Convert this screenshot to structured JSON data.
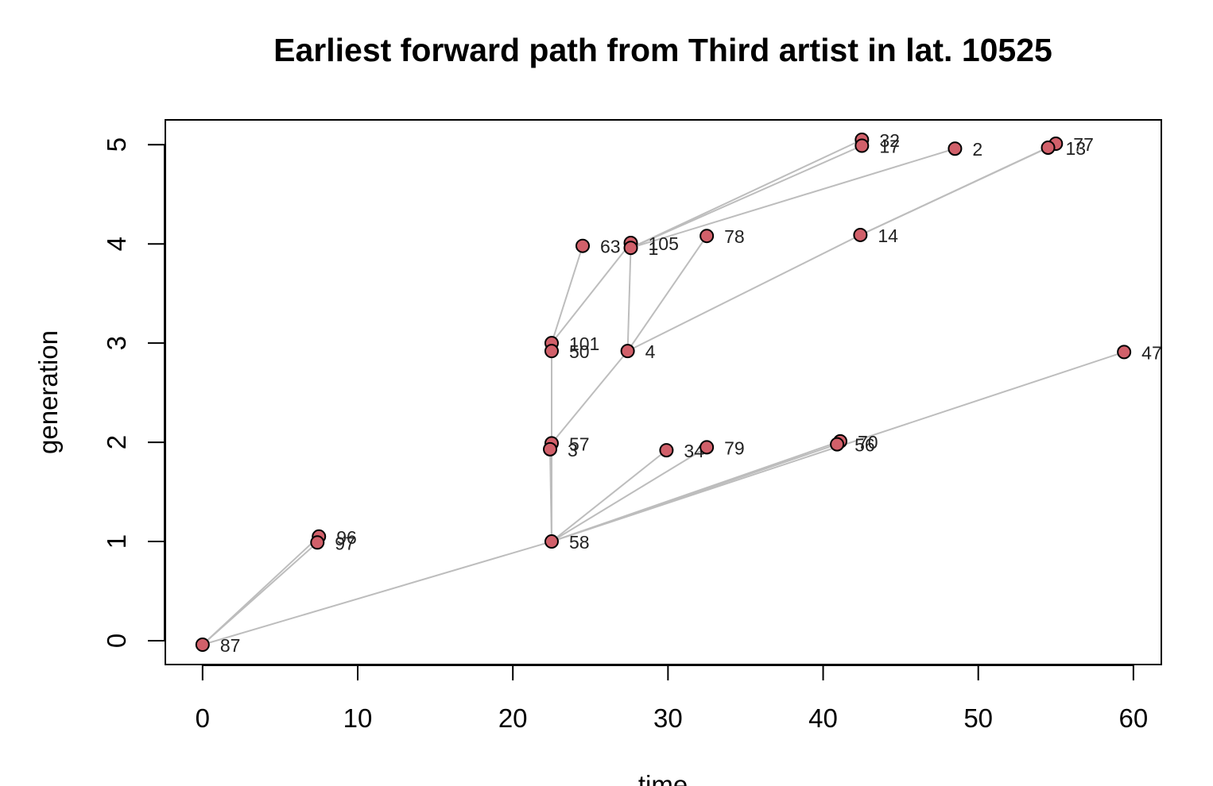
{
  "chart_data": {
    "type": "scatter",
    "title": "Earliest forward path from Third artist in lat. 10525",
    "xlabel": "time",
    "ylabel": "generation",
    "xlim": [
      -2.4,
      61.8
    ],
    "ylim": [
      -0.24,
      5.25
    ],
    "xticks": [
      0,
      10,
      20,
      30,
      40,
      50,
      60
    ],
    "yticks": [
      0,
      1,
      2,
      3,
      4,
      5
    ],
    "grid": false,
    "point_color": "#d1606a",
    "edge_color": "#bdbdbd",
    "nodes": [
      {
        "id": "87",
        "x": 0.0,
        "y": -0.04
      },
      {
        "id": "96",
        "x": 7.5,
        "y": 1.05
      },
      {
        "id": "97",
        "x": 7.4,
        "y": 0.99
      },
      {
        "id": "58",
        "x": 22.5,
        "y": 1.0
      },
      {
        "id": "57",
        "x": 22.5,
        "y": 1.99
      },
      {
        "id": "3",
        "x": 22.4,
        "y": 1.93
      },
      {
        "id": "34",
        "x": 29.9,
        "y": 1.92
      },
      {
        "id": "79",
        "x": 32.5,
        "y": 1.95
      },
      {
        "id": "70",
        "x": 41.1,
        "y": 2.01
      },
      {
        "id": "56",
        "x": 40.9,
        "y": 1.98
      },
      {
        "id": "101",
        "x": 22.5,
        "y": 3.0
      },
      {
        "id": "50",
        "x": 22.5,
        "y": 2.92
      },
      {
        "id": "4",
        "x": 27.4,
        "y": 2.92
      },
      {
        "id": "47",
        "x": 59.4,
        "y": 2.91
      },
      {
        "id": "63",
        "x": 24.5,
        "y": 3.98
      },
      {
        "id": "105",
        "x": 27.6,
        "y": 4.01
      },
      {
        "id": "1",
        "x": 27.6,
        "y": 3.96
      },
      {
        "id": "78",
        "x": 32.5,
        "y": 4.08
      },
      {
        "id": "14",
        "x": 42.4,
        "y": 4.09
      },
      {
        "id": "32",
        "x": 42.5,
        "y": 5.05
      },
      {
        "id": "17",
        "x": 42.5,
        "y": 4.99
      },
      {
        "id": "2",
        "x": 48.5,
        "y": 4.96
      },
      {
        "id": "77",
        "x": 55.0,
        "y": 5.01
      },
      {
        "id": "13",
        "x": 54.5,
        "y": 4.97
      }
    ],
    "edges": [
      [
        "87",
        "96"
      ],
      [
        "87",
        "97"
      ],
      [
        "87",
        "58"
      ],
      [
        "58",
        "57"
      ],
      [
        "58",
        "3"
      ],
      [
        "58",
        "34"
      ],
      [
        "58",
        "79"
      ],
      [
        "58",
        "70"
      ],
      [
        "58",
        "56"
      ],
      [
        "58",
        "47"
      ],
      [
        "57",
        "50"
      ],
      [
        "57",
        "4"
      ],
      [
        "50",
        "101"
      ],
      [
        "101",
        "63"
      ],
      [
        "101",
        "105"
      ],
      [
        "4",
        "1"
      ],
      [
        "4",
        "78"
      ],
      [
        "4",
        "14"
      ],
      [
        "1",
        "32"
      ],
      [
        "1",
        "17"
      ],
      [
        "1",
        "2"
      ],
      [
        "14",
        "77"
      ],
      [
        "14",
        "13"
      ]
    ]
  }
}
